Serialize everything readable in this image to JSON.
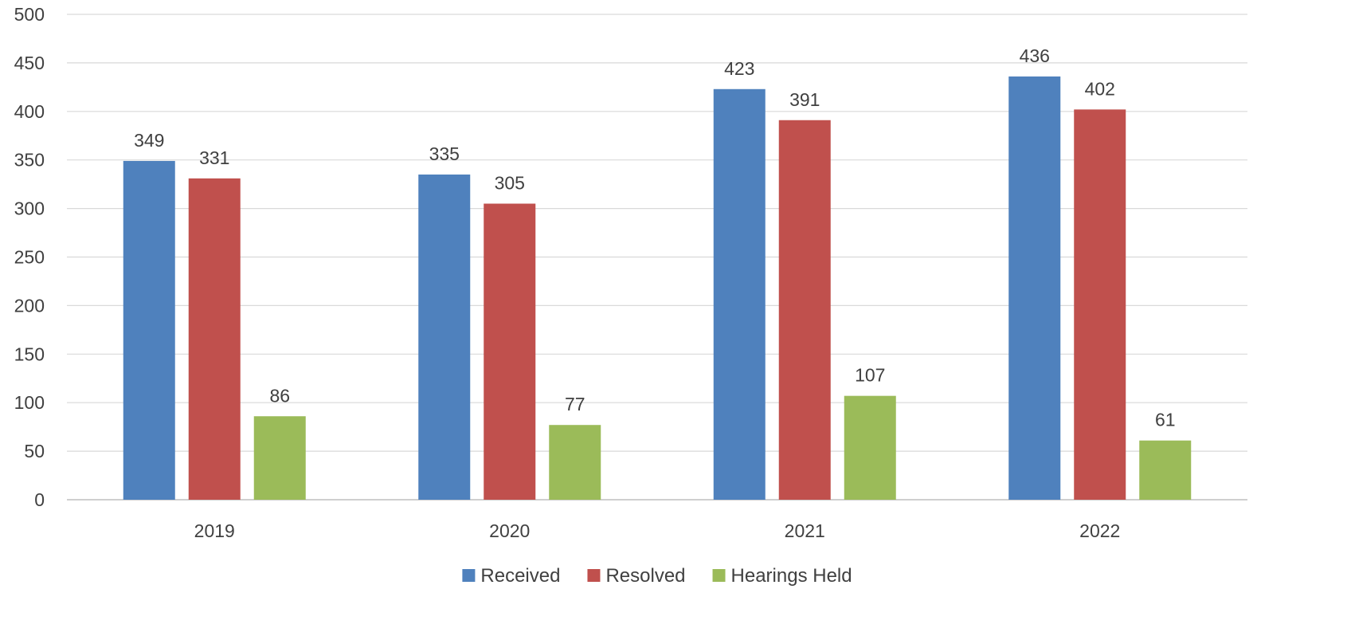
{
  "chart_data": {
    "type": "bar",
    "categories": [
      "2019",
      "2020",
      "2021",
      "2022"
    ],
    "series": [
      {
        "name": "Received",
        "values": [
          349,
          335,
          423,
          436
        ],
        "color": "#4F81BD"
      },
      {
        "name": "Resolved",
        "values": [
          331,
          305,
          391,
          402
        ],
        "color": "#C0504D"
      },
      {
        "name": "Hearings Held",
        "values": [
          86,
          77,
          107,
          61
        ],
        "color": "#9BBB59"
      }
    ],
    "ylim": [
      0,
      500
    ],
    "yticks": [
      0,
      50,
      100,
      150,
      200,
      250,
      300,
      350,
      400,
      450,
      500
    ],
    "grid": true,
    "legend_position": "bottom",
    "data_labels": true,
    "colors": {
      "gridline": "#D9D9D9",
      "axis": "#BFBFBF",
      "text": "#404040"
    }
  }
}
